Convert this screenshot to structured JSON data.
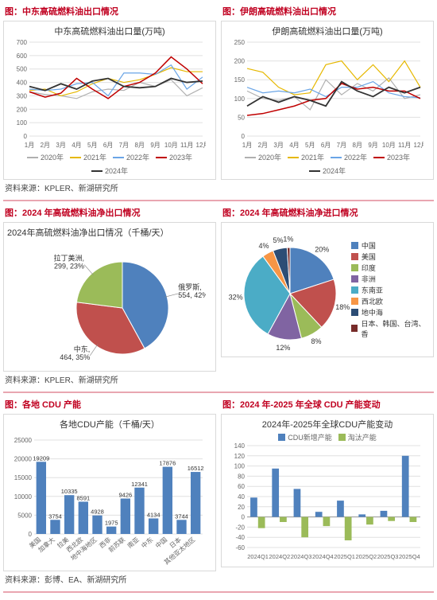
{
  "colors": {
    "accent": "#c00020",
    "grid": "#e0e0e0",
    "border": "#d9d9d9",
    "axis_text": "#666666",
    "label_text": "#333333"
  },
  "typography": {
    "header_fontsize": 11,
    "chart_title_fontsize": 11,
    "axis_fontsize": 9,
    "legend_fontsize": 9,
    "source_fontsize": 10
  },
  "line_charts": {
    "x_categories": [
      "1月",
      "2月",
      "3月",
      "4月",
      "5月",
      "6月",
      "7月",
      "8月",
      "9月",
      "10月",
      "11月",
      "12月"
    ],
    "series_meta": [
      {
        "name": "2020年",
        "color": "#b0b0b0",
        "width": 1.2
      },
      {
        "name": "2021年",
        "color": "#e6b800",
        "width": 1.2
      },
      {
        "name": "2022年",
        "color": "#6aa5e6",
        "width": 1.2
      },
      {
        "name": "2023年",
        "color": "#c00000",
        "width": 1.5
      },
      {
        "name": "2024年",
        "color": "#333333",
        "width": 1.8
      }
    ],
    "left": {
      "header": "图：中东高硫燃料油出口情况",
      "title": "中东高硫燃料油出口量(万吨)",
      "ylim": [
        0,
        700
      ],
      "ytick_step": 100,
      "series": {
        "2020年": [
          330,
          310,
          300,
          280,
          330,
          350,
          340,
          400,
          370,
          420,
          300,
          360
        ],
        "2021年": [
          340,
          350,
          300,
          330,
          390,
          430,
          400,
          420,
          460,
          510,
          480,
          480
        ],
        "2022年": [
          350,
          340,
          350,
          390,
          400,
          300,
          470,
          470,
          460,
          530,
          350,
          440
        ],
        "2023年": [
          330,
          290,
          320,
          430,
          350,
          280,
          370,
          400,
          470,
          590,
          500,
          390
        ],
        "2024年": [
          370,
          340,
          390,
          350,
          410,
          430,
          370,
          360,
          370,
          430,
          400,
          410
        ]
      }
    },
    "right": {
      "header": "图：伊朗高硫燃料油出口情况",
      "title": "伊朗高硫燃料油出口量(万吨)",
      "ylim": [
        0,
        250
      ],
      "ytick_step": 50,
      "series": {
        "2020年": [
          120,
          100,
          95,
          105,
          70,
          150,
          110,
          140,
          120,
          155,
          100,
          110
        ],
        "2021年": [
          180,
          170,
          130,
          110,
          115,
          190,
          200,
          150,
          190,
          145,
          200,
          130
        ],
        "2022年": [
          130,
          115,
          120,
          115,
          125,
          105,
          130,
          130,
          145,
          115,
          105,
          102
        ],
        "2023年": [
          55,
          60,
          70,
          80,
          95,
          100,
          140,
          125,
          130,
          120,
          120,
          100
        ],
        "2024年": [
          80,
          105,
          90,
          105,
          95,
          80,
          145,
          120,
          105,
          130,
          115,
          130
        ]
      }
    },
    "source": "资料来源：KPLER、新湖研究所"
  },
  "pies": {
    "left": {
      "header": "图：2024 年高硫燃料油净出口情况",
      "title": "2024年高硫燃料油净出口情况（千桶/天）",
      "slices": [
        {
          "label": "俄罗斯",
          "value": 554,
          "pct": 42,
          "color": "#4f81bd"
        },
        {
          "label": "中东",
          "value": 464,
          "pct": 35,
          "color": "#c0504d"
        },
        {
          "label": "拉丁美洲",
          "value": 299,
          "pct": 23,
          "color": "#9bbb59"
        }
      ],
      "label_fontsize": 9
    },
    "right": {
      "header": "图：2024 年高硫燃料油净进口情况",
      "slices": [
        {
          "label": "中国",
          "pct": 20,
          "color": "#4f81bd"
        },
        {
          "label": "美国",
          "pct": 18,
          "color": "#c0504d"
        },
        {
          "label": "印度",
          "pct": 8,
          "color": "#9bbb59"
        },
        {
          "label": "非洲",
          "pct": 12,
          "color": "#8064a2"
        },
        {
          "label": "东南亚",
          "pct": 32,
          "color": "#4bacc6"
        },
        {
          "label": "西北欧",
          "pct": 4,
          "color": "#f79646"
        },
        {
          "label": "地中海",
          "pct": 5,
          "color": "#2c4d75"
        },
        {
          "label": "日本、韩国、台湾、香",
          "pct": 1,
          "color": "#772c2a"
        }
      ]
    },
    "source": "资料来源：KPLER、新湖研究所"
  },
  "bar_chart": {
    "header": "图：各地 CDU 产能",
    "title": "各地CDU产能（千桶/天）",
    "ylim": [
      0,
      25000
    ],
    "ytick_step": 5000,
    "bar_color": "#4f81bd",
    "categories": [
      "美国",
      "加拿大",
      "拉美",
      "西北欧",
      "地中海地区",
      "西非",
      "前苏联",
      "南亚",
      "中东",
      "中国",
      "日本",
      "其他亚太地区"
    ],
    "values": [
      19209,
      3754,
      10335,
      8591,
      4928,
      1975,
      9426,
      12341,
      4134,
      17876,
      3744,
      16512
    ]
  },
  "combo_chart": {
    "header": "图：2024 年-2025 年全球 CDU 产能变动",
    "title": "2024年-2025年全球CDU产能变动",
    "legend": [
      {
        "name": "CDU新增产能",
        "color": "#4f81bd",
        "type": "bar"
      },
      {
        "name": "淘汰产能",
        "color": "#9bbb59",
        "type": "bar"
      }
    ],
    "ylim": [
      -60,
      140
    ],
    "ytick_step": 20,
    "categories": [
      "2024Q1",
      "2024Q2",
      "2024Q3",
      "2024Q4",
      "2025Q1",
      "2025Q2",
      "2025Q3",
      "2025Q4"
    ],
    "series": {
      "CDU新增产能": [
        38,
        95,
        55,
        10,
        32,
        5,
        12,
        120
      ],
      "淘汰产能": [
        -22,
        -10,
        -40,
        -18,
        -46,
        -15,
        -8,
        -10
      ]
    }
  },
  "bottom_source": "资料来源：彭博、EA、新湖研究所"
}
